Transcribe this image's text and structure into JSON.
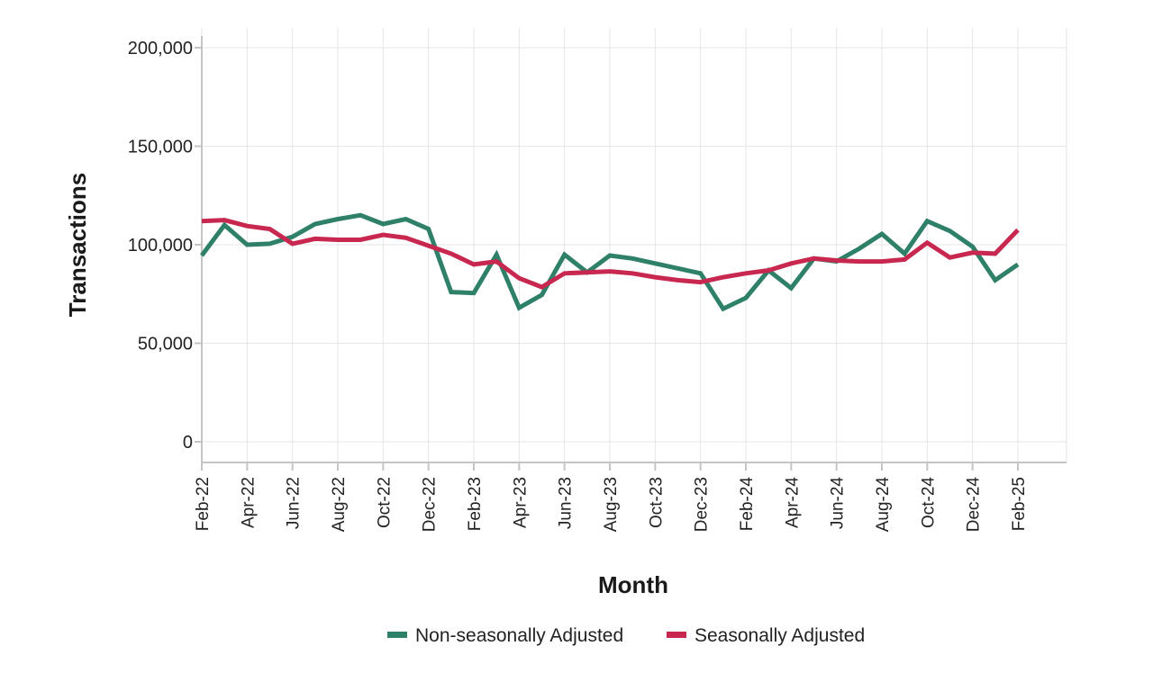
{
  "chart_data": {
    "type": "line",
    "title": "",
    "xlabel": "Month",
    "ylabel": "Transactions",
    "ylim": [
      0,
      200000
    ],
    "yticks": [
      0,
      50000,
      100000,
      150000,
      200000
    ],
    "ytick_labels": [
      "0",
      "50,000",
      "100,000",
      "150,000",
      "200,000"
    ],
    "grid": true,
    "legend_position": "bottom-center",
    "x": [
      "Feb-22",
      "Mar-22",
      "Apr-22",
      "May-22",
      "Jun-22",
      "Jul-22",
      "Aug-22",
      "Sep-22",
      "Oct-22",
      "Nov-22",
      "Dec-22",
      "Jan-23",
      "Feb-23",
      "Mar-23",
      "Apr-23",
      "May-23",
      "Jun-23",
      "Jul-23",
      "Aug-23",
      "Sep-23",
      "Oct-23",
      "Nov-23",
      "Dec-23",
      "Jan-24",
      "Feb-24",
      "Mar-24",
      "Apr-24",
      "May-24",
      "Jun-24",
      "Jul-24",
      "Aug-24",
      "Sep-24",
      "Oct-24",
      "Nov-24",
      "Dec-24",
      "Jan-25",
      "Feb-25"
    ],
    "xtick_labels": [
      "Feb-22",
      "Apr-22",
      "Jun-22",
      "Aug-22",
      "Oct-22",
      "Dec-22",
      "Feb-23",
      "Apr-23",
      "Jun-23",
      "Aug-23",
      "Oct-23",
      "Dec-23",
      "Feb-24",
      "Apr-24",
      "Jun-24",
      "Aug-24",
      "Oct-24",
      "Dec-24",
      "Feb-25"
    ],
    "series": [
      {
        "name": "Non-seasonally Adjusted",
        "color": "#2e8068",
        "values": [
          94500,
          110000,
          100000,
          100500,
          104000,
          110500,
          113000,
          115000,
          110500,
          113000,
          108000,
          76000,
          75500,
          95000,
          68000,
          74500,
          95000,
          86000,
          94500,
          93000,
          90500,
          88000,
          85500,
          67500,
          73000,
          87000,
          78000,
          93000,
          91500,
          98000,
          105500,
          95500,
          112000,
          107000,
          99000,
          82000,
          90000
        ]
      },
      {
        "name": "Seasonally Adjusted",
        "color": "#c8284f",
        "values": [
          112000,
          112500,
          109500,
          108000,
          100500,
          103000,
          102500,
          102500,
          105000,
          103500,
          99500,
          95500,
          90000,
          91500,
          83000,
          78500,
          85500,
          86000,
          86500,
          85500,
          83500,
          82000,
          81000,
          83500,
          85500,
          87000,
          90500,
          93000,
          92000,
          91500,
          91500,
          92500,
          101000,
          93500,
          96000,
          95500,
          107500
        ]
      }
    ]
  }
}
